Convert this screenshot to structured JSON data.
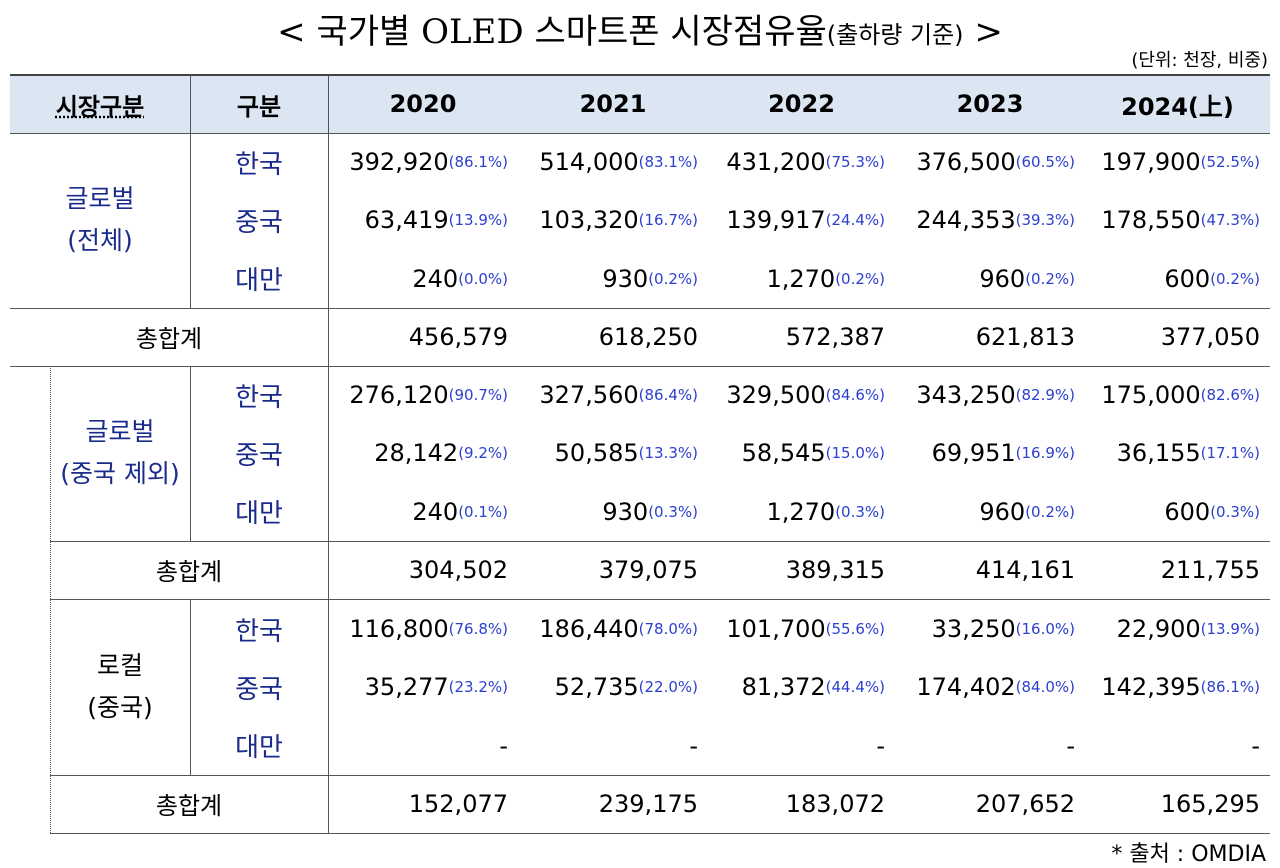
{
  "title": {
    "main": "< 국가별 OLED 스마트폰 시장점유율",
    "sub": "(출하량 기준)",
    "end": ">"
  },
  "unit": "(단위: 천장, 비중)",
  "header": [
    "시장구분",
    "구분",
    "2020",
    "2021",
    "2022",
    "2023",
    "2024(上)"
  ],
  "sections": [
    {
      "label": [
        "글로벌",
        "(전체)"
      ],
      "rows": [
        {
          "country": "한국",
          "cells": [
            {
              "value": "392,920",
              "share": "(86.1%)"
            },
            {
              "value": "514,000",
              "share": "(83.1%)"
            },
            {
              "value": "431,200",
              "share": "(75.3%)"
            },
            {
              "value": "376,500",
              "share": "(60.5%)"
            },
            {
              "value": "197,900",
              "share": "(52.5%)"
            }
          ]
        },
        {
          "country": "중국",
          "cells": [
            {
              "value": "63,419",
              "share": "(13.9%)"
            },
            {
              "value": "103,320",
              "share": "(16.7%)"
            },
            {
              "value": "139,917",
              "share": "(24.4%)"
            },
            {
              "value": "244,353",
              "share": "(39.3%)"
            },
            {
              "value": "178,550",
              "share": "(47.3%)"
            }
          ]
        },
        {
          "country": "대만",
          "cells": [
            {
              "value": "240",
              "share": "(0.0%)"
            },
            {
              "value": "930",
              "share": "(0.2%)"
            },
            {
              "value": "1,270",
              "share": "(0.2%)"
            },
            {
              "value": "960",
              "share": "(0.2%)"
            },
            {
              "value": "600",
              "share": "(0.2%)"
            }
          ]
        }
      ],
      "total": {
        "label": "총합계",
        "values": [
          "456,579",
          "618,250",
          "572,387",
          "621,813",
          "377,050"
        ]
      }
    },
    {
      "label": [
        "글로벌",
        "(중국 제외)"
      ],
      "rows": [
        {
          "country": "한국",
          "cells": [
            {
              "value": "276,120",
              "share": "(90.7%)"
            },
            {
              "value": "327,560",
              "share": "(86.4%)"
            },
            {
              "value": "329,500",
              "share": "(84.6%)"
            },
            {
              "value": "343,250",
              "share": "(82.9%)"
            },
            {
              "value": "175,000",
              "share": "(82.6%)"
            }
          ]
        },
        {
          "country": "중국",
          "cells": [
            {
              "value": "28,142",
              "share": "(9.2%)"
            },
            {
              "value": "50,585",
              "share": "(13.3%)"
            },
            {
              "value": "58,545",
              "share": "(15.0%)"
            },
            {
              "value": "69,951",
              "share": "(16.9%)"
            },
            {
              "value": "36,155",
              "share": "(17.1%)"
            }
          ]
        },
        {
          "country": "대만",
          "cells": [
            {
              "value": "240",
              "share": "(0.1%)"
            },
            {
              "value": "930",
              "share": "(0.3%)"
            },
            {
              "value": "1,270",
              "share": "(0.3%)"
            },
            {
              "value": "960",
              "share": "(0.2%)"
            },
            {
              "value": "600",
              "share": "(0.3%)"
            }
          ]
        }
      ],
      "total": {
        "label": "총합계",
        "values": [
          "304,502",
          "379,075",
          "389,315",
          "414,161",
          "211,755"
        ]
      }
    },
    {
      "label": [
        "로컬",
        "(중국)"
      ],
      "rows": [
        {
          "country": "한국",
          "cells": [
            {
              "value": "116,800",
              "share": "(76.8%)"
            },
            {
              "value": "186,440",
              "share": "(78.0%)"
            },
            {
              "value": "101,700",
              "share": "(55.6%)"
            },
            {
              "value": "33,250",
              "share": "(16.0%)"
            },
            {
              "value": "22,900",
              "share": "(13.9%)"
            }
          ]
        },
        {
          "country": "중국",
          "cells": [
            {
              "value": "35,277",
              "share": "(23.2%)"
            },
            {
              "value": "52,735",
              "share": "(22.0%)"
            },
            {
              "value": "81,372",
              "share": "(44.4%)"
            },
            {
              "value": "174,402",
              "share": "(84.0%)"
            },
            {
              "value": "142,395",
              "share": "(86.1%)"
            }
          ]
        },
        {
          "country": "대만",
          "cells": [
            {
              "value": "-"
            },
            {
              "value": "-"
            },
            {
              "value": "-"
            },
            {
              "value": "-"
            },
            {
              "value": "-"
            }
          ]
        }
      ],
      "total": {
        "label": "총합계",
        "values": [
          "152,077",
          "239,175",
          "183,072",
          "207,652",
          "165,295"
        ]
      }
    }
  ],
  "source": "* 출처 : OMDIA"
}
